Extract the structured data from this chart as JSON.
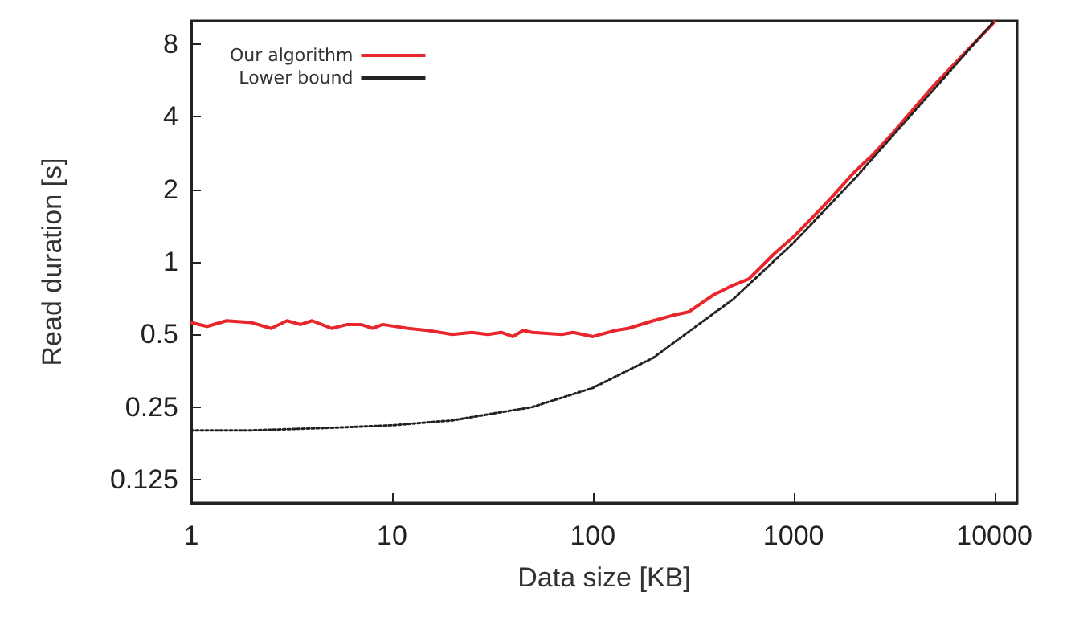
{
  "chart_data": {
    "type": "line",
    "xlabel": "Data size [KB]",
    "ylabel": "Read duration [s]",
    "log": "xy",
    "grid": false,
    "legend": "top left",
    "marker": "none",
    "xlim": [
      1,
      13000
    ],
    "xticks": [
      1,
      10,
      100,
      1000,
      10000
    ],
    "ylim": [
      0.1,
      10
    ],
    "yticks": [
      0.125,
      0.25,
      0.5,
      1,
      2,
      4,
      8
    ],
    "series": [
      {
        "name": "Our algorithm",
        "color": "#e8262b",
        "line_style": "solid",
        "x": [
          1,
          1.2,
          1.5,
          2,
          2.5,
          3,
          3.5,
          4,
          5,
          6,
          7,
          8,
          9,
          12,
          15,
          20,
          25,
          30,
          35,
          40,
          45,
          50,
          70,
          80,
          100,
          130,
          150,
          200,
          250,
          300,
          400,
          500,
          600,
          800,
          1000,
          1500,
          2000,
          2500,
          3000,
          5000,
          10000
        ],
        "values": [
          0.56,
          0.54,
          0.57,
          0.56,
          0.53,
          0.57,
          0.55,
          0.57,
          0.53,
          0.55,
          0.55,
          0.53,
          0.55,
          0.53,
          0.52,
          0.5,
          0.51,
          0.5,
          0.51,
          0.49,
          0.52,
          0.51,
          0.5,
          0.51,
          0.49,
          0.52,
          0.53,
          0.57,
          0.6,
          0.62,
          0.73,
          0.8,
          0.85,
          1.08,
          1.27,
          1.8,
          2.35,
          2.8,
          3.3,
          5.4,
          9.9
        ]
      },
      {
        "name": "Lower bound",
        "color": "#222222",
        "line_style": "dotted",
        "x": [
          1,
          2,
          5,
          10,
          20,
          50,
          100,
          200,
          500,
          1000,
          2000,
          5000,
          10000
        ],
        "values": [
          0.2,
          0.2,
          0.205,
          0.21,
          0.22,
          0.25,
          0.3,
          0.4,
          0.7,
          1.2,
          2.2,
          5.2,
          10
        ]
      }
    ]
  }
}
